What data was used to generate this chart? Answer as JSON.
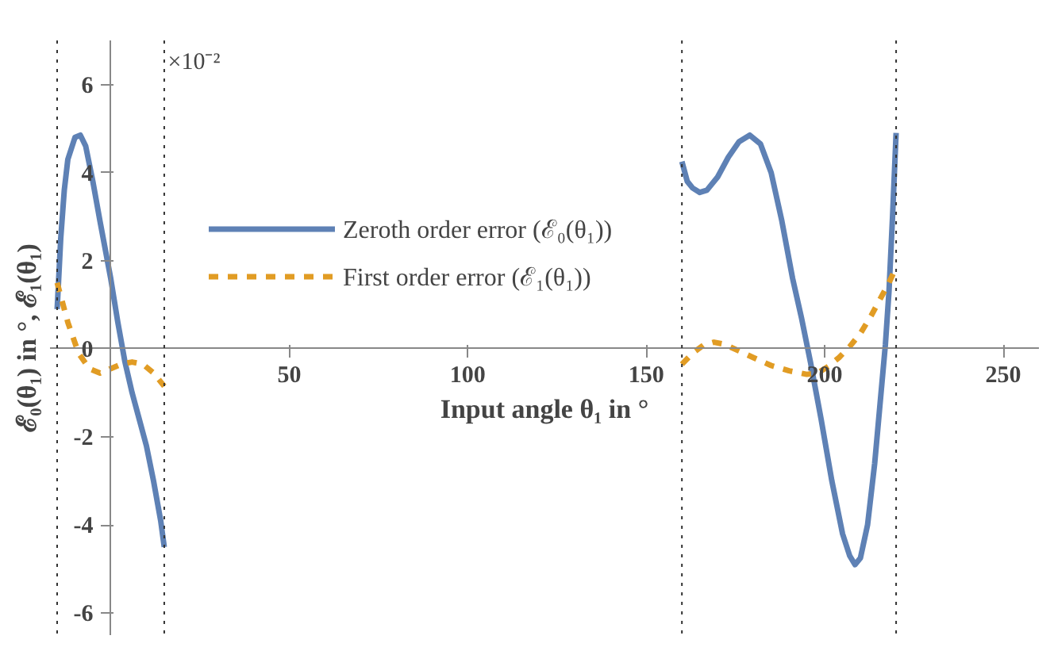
{
  "chart_data": {
    "type": "line",
    "xlabel": "Input angle θ₁ in °",
    "ylabel": "ℰ₀(θ₁) in °, ℰ₁(θ₁)",
    "annotations": [
      "×10⁻²"
    ],
    "xlim": [
      -17,
      260
    ],
    "ylim": [
      -6.5,
      7
    ],
    "xticks": [
      50,
      100,
      150,
      200,
      250
    ],
    "yticks": [
      -6,
      -4,
      -2,
      0,
      2,
      4,
      6
    ],
    "grid": false,
    "legend": "top",
    "series": [
      {
        "name": "Zeroth order error (ℰ₀(θ₁))",
        "color": "#5e81b5",
        "line_style": "solid",
        "x": [
          -15,
          -14,
          -13,
          -12,
          -10,
          -8.5,
          -7,
          -5,
          -3,
          0,
          2,
          4,
          6,
          8,
          10,
          12,
          14,
          15,
          87.5,
          160,
          161.5,
          163,
          165,
          167,
          170,
          173,
          176,
          179,
          182,
          185,
          188,
          191,
          193.5,
          196,
          199,
          202,
          205,
          207,
          208.5,
          210,
          212,
          214,
          216,
          217,
          218,
          219,
          220
        ],
        "values": [
          0.9,
          2.5,
          3.6,
          4.3,
          4.8,
          4.85,
          4.6,
          3.8,
          2.9,
          1.6,
          0.6,
          -0.3,
          -1.0,
          -1.6,
          -2.2,
          -3.0,
          -3.9,
          -4.5,
          null,
          4.25,
          3.8,
          3.65,
          3.55,
          3.6,
          3.9,
          4.35,
          4.7,
          4.85,
          4.65,
          4.0,
          2.9,
          1.6,
          0.7,
          -0.3,
          -1.6,
          -3.0,
          -4.2,
          -4.7,
          -4.9,
          -4.75,
          -4.0,
          -2.6,
          -0.8,
          0.1,
          1.3,
          3.0,
          4.9
        ]
      },
      {
        "name": "First order error (ℰ₁(θ₁))",
        "color": "#e19c24",
        "line_style": "dashed",
        "x": [
          -15,
          -12,
          -9,
          -6,
          -3,
          0,
          3,
          6,
          9,
          12,
          15,
          87.5,
          160,
          163,
          166,
          169,
          172,
          176,
          180,
          185,
          190,
          195,
          198,
          201,
          204,
          207,
          210,
          213,
          216,
          218,
          220
        ],
        "values": [
          1.5,
          0.6,
          -0.1,
          -0.45,
          -0.55,
          -0.45,
          -0.35,
          -0.3,
          -0.35,
          -0.55,
          -0.85,
          null,
          -0.35,
          -0.1,
          0.08,
          0.15,
          0.1,
          -0.05,
          -0.2,
          -0.38,
          -0.5,
          -0.58,
          -0.55,
          -0.4,
          -0.2,
          0.05,
          0.35,
          0.75,
          1.2,
          1.5,
          1.85
        ]
      }
    ],
    "ref_lines": [
      {
        "axis": "x",
        "value": -15,
        "color": "#333333",
        "line_style": "dotted"
      },
      {
        "axis": "x",
        "value": 15,
        "color": "#333333",
        "line_style": "dotted"
      },
      {
        "axis": "x",
        "value": 160,
        "color": "#333333",
        "line_style": "dotted"
      },
      {
        "axis": "x",
        "value": 220,
        "color": "#333333",
        "line_style": "dotted"
      }
    ]
  }
}
